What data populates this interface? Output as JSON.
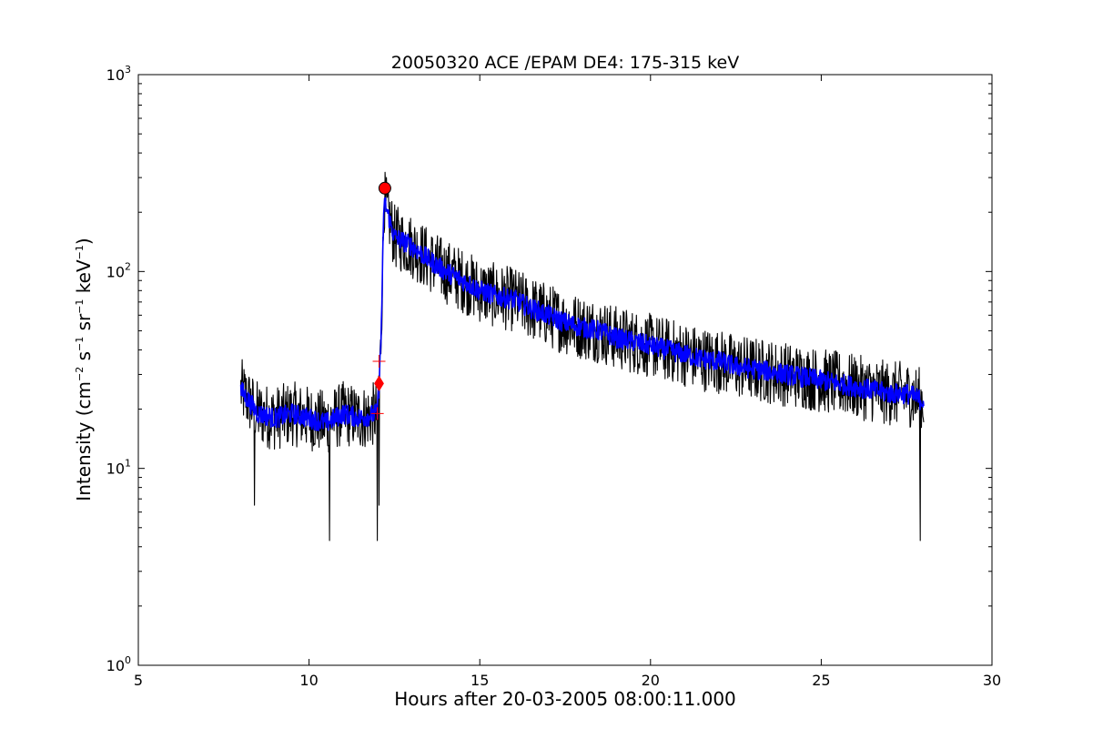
{
  "chart_data": {
    "type": "line",
    "title": "20050320 ACE /EPAM DE4: 175-315 keV",
    "xlabel": "Hours after 20-03-2005 08:00:11.000",
    "ylabel_parts": [
      "Intensity (cm",
      "−2",
      " s",
      "−1",
      " sr",
      "−1",
      " keV",
      "−1",
      ")"
    ],
    "xlim": [
      5,
      30
    ],
    "ylim": [
      1,
      1000
    ],
    "yscale": "log",
    "grid": false,
    "x_ticks": [
      5,
      10,
      15,
      20,
      25,
      30
    ],
    "x_tick_labels": [
      "5",
      "10",
      "15",
      "20",
      "25",
      "30"
    ],
    "y_ticks": [
      1,
      10,
      100,
      1000
    ],
    "y_tick_labels": [
      {
        "base": "10",
        "exp": "0"
      },
      {
        "base": "10",
        "exp": "1"
      },
      {
        "base": "10",
        "exp": "2"
      },
      {
        "base": "10",
        "exp": "3"
      }
    ],
    "series": [
      {
        "color": "#000000",
        "style": "raw",
        "x": [
          8.0,
          8.5,
          9.0,
          9.5,
          10.0,
          10.5,
          11.0,
          11.5,
          12.0,
          12.1,
          12.2,
          12.5,
          13.0,
          13.5,
          14.0,
          14.5,
          15.0,
          15.5,
          16.0,
          16.5,
          17.0,
          17.5,
          18.0,
          18.5,
          19.0,
          19.5,
          20.0,
          20.5,
          21.0,
          21.5,
          22.0,
          22.5,
          23.0,
          23.5,
          24.0,
          24.5,
          25.0,
          25.5,
          26.0,
          26.5,
          27.0,
          27.5,
          28.0
        ],
        "y": [
          25,
          19,
          18,
          19,
          18,
          17,
          19,
          18,
          19,
          40,
          230,
          150,
          135,
          115,
          100,
          90,
          80,
          75,
          72,
          65,
          60,
          55,
          52,
          50,
          46,
          44,
          42,
          40,
          38,
          36,
          35,
          33,
          32,
          31,
          30,
          29,
          28,
          27,
          26,
          25,
          24,
          24,
          22
        ],
        "noise": 0.38,
        "spikes_down": [
          [
            8.4,
            6.5
          ],
          [
            10.6,
            4.3
          ],
          [
            12.0,
            4.3
          ],
          [
            12.05,
            6.5
          ],
          [
            27.9,
            4.3
          ]
        ]
      },
      {
        "color": "#0000ff",
        "style": "smoothed",
        "x": [
          8.0,
          8.5,
          9.0,
          9.5,
          10.0,
          10.5,
          11.0,
          11.5,
          12.0,
          12.1,
          12.2,
          12.5,
          13.0,
          13.5,
          14.0,
          14.5,
          15.0,
          15.5,
          16.0,
          16.5,
          17.0,
          17.5,
          18.0,
          18.5,
          19.0,
          19.5,
          20.0,
          20.5,
          21.0,
          21.5,
          22.0,
          22.5,
          23.0,
          23.5,
          24.0,
          24.5,
          25.0,
          25.5,
          26.0,
          26.5,
          27.0,
          27.5,
          28.0
        ],
        "y": [
          25,
          19,
          18,
          19,
          18,
          17,
          19,
          18,
          19,
          40,
          230,
          150,
          135,
          115,
          100,
          90,
          80,
          75,
          72,
          65,
          60,
          55,
          52,
          50,
          46,
          44,
          42,
          40,
          38,
          36,
          35,
          33,
          32,
          31,
          30,
          29,
          28,
          27,
          26,
          25,
          24,
          24,
          22
        ],
        "noise": 0.12
      }
    ],
    "markers": [
      {
        "kind": "circle",
        "x": 12.22,
        "y": 265,
        "color": "#ff0000"
      },
      {
        "kind": "diamond",
        "x": 12.05,
        "y": 27,
        "color": "#ff0000"
      },
      {
        "kind": "plus",
        "x": 12.05,
        "y": 35,
        "color": "#ff0000"
      },
      {
        "kind": "plus",
        "x": 12.0,
        "y": 19,
        "color": "#ff0000"
      }
    ]
  }
}
